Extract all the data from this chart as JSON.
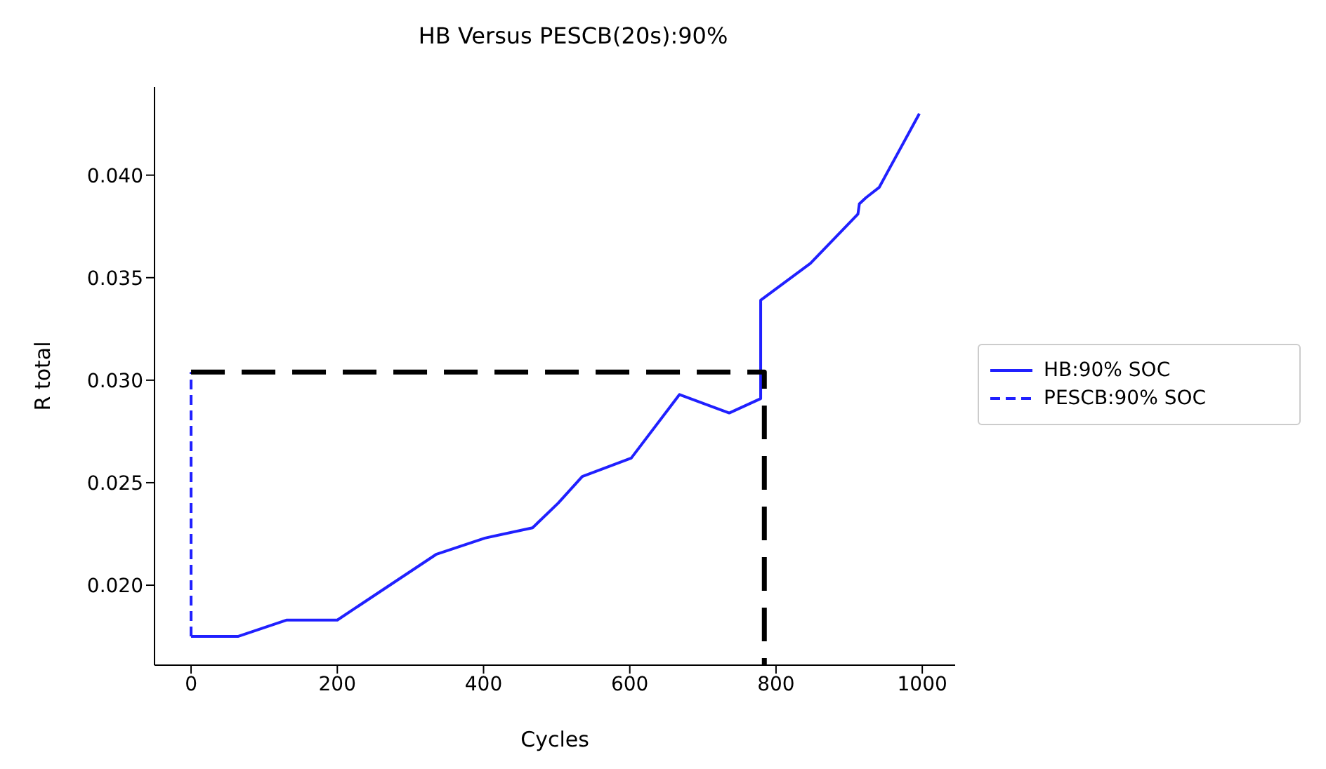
{
  "chart_data": {
    "type": "line",
    "title": "HB Versus PESCB(20s):90%",
    "xlabel": "Cycles",
    "ylabel": "R total",
    "xlim": [
      -50,
      1045
    ],
    "ylim": [
      0.0161,
      0.0443
    ],
    "xticks": [
      0,
      200,
      400,
      600,
      800,
      1000
    ],
    "yticks": [
      {
        "value": 0.02,
        "label": "0.020"
      },
      {
        "value": 0.025,
        "label": "0.025"
      },
      {
        "value": 0.03,
        "label": "0.030"
      },
      {
        "value": 0.035,
        "label": "0.035"
      },
      {
        "value": 0.04,
        "label": "0.040"
      }
    ],
    "grid": false,
    "legend": "right",
    "marker": "none",
    "series": [
      {
        "name": "HB:90% SOC",
        "color": "#2020ff",
        "line_style": "solid",
        "x": [
          0,
          64,
          131,
          200,
          335,
          402,
          467,
          502,
          535,
          602,
          668,
          736,
          779,
          779,
          847,
          912,
          914,
          923,
          941,
          996
        ],
        "values": [
          0.0175,
          0.0175,
          0.0183,
          0.0183,
          0.0215,
          0.0223,
          0.0228,
          0.024,
          0.0253,
          0.0262,
          0.0293,
          0.0284,
          0.0291,
          0.0339,
          0.0357,
          0.0381,
          0.0386,
          0.0389,
          0.0394,
          0.043
        ]
      },
      {
        "name": "PESCB:90% SOC",
        "color": "#2020ff",
        "line_style": "dashed",
        "x": [
          0,
          0
        ],
        "values": [
          0.0175,
          0.0304
        ]
      },
      {
        "color": "#000000",
        "line_style": "dashed",
        "x": [
          0,
          784,
          784
        ],
        "values": [
          0.0304,
          0.0304,
          0.0161
        ]
      }
    ]
  }
}
